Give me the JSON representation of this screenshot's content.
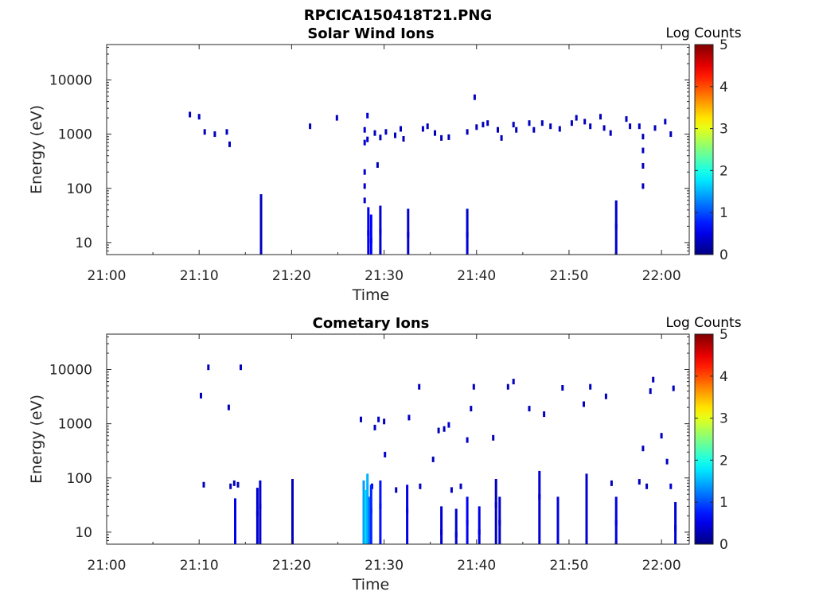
{
  "figure": {
    "title": "RPCICA150418T21.PNG"
  },
  "chart_data": [
    {
      "type": "heatmap",
      "title": "Solar Wind Ions",
      "xlabel": "Time",
      "ylabel": "Energy (eV)",
      "x_ticks": [
        "21:00",
        "21:10",
        "21:20",
        "21:30",
        "21:40",
        "21:50",
        "22:00"
      ],
      "y_ticks": [
        "10",
        "100",
        "1000",
        "10000"
      ],
      "y_scale": "log",
      "xlim": [
        "21:00",
        "22:03"
      ],
      "ylim": [
        6,
        45000
      ],
      "colorbar": {
        "label": "Log Counts",
        "ticks": [
          "0",
          "1",
          "2",
          "3",
          "4",
          "5"
        ],
        "range": [
          0,
          5
        ]
      },
      "grid": false,
      "points": [
        {
          "t": 9.0,
          "e": 2300,
          "v": 0.3
        },
        {
          "t": 10.0,
          "e": 2100,
          "v": 0.3
        },
        {
          "t": 10.6,
          "e": 1100,
          "v": 0.3
        },
        {
          "t": 11.7,
          "e": 1000,
          "v": 0.3
        },
        {
          "t": 13.0,
          "e": 1100,
          "v": 0.3
        },
        {
          "t": 13.3,
          "e": 650,
          "v": 0.3
        },
        {
          "t": 16.7,
          "e": 26,
          "v": 0.3
        },
        {
          "t": 22.0,
          "e": 1400,
          "v": 0.3
        },
        {
          "t": 24.9,
          "e": 2000,
          "v": 0.3
        },
        {
          "t": 27.9,
          "e": 1200,
          "v": 0.4
        },
        {
          "t": 27.9,
          "e": 700,
          "v": 0.4
        },
        {
          "t": 27.9,
          "e": 200,
          "v": 0.4
        },
        {
          "t": 27.9,
          "e": 110,
          "v": 0.4
        },
        {
          "t": 27.9,
          "e": 60,
          "v": 0.4
        },
        {
          "t": 28.2,
          "e": 2200,
          "v": 0.4
        },
        {
          "t": 28.2,
          "e": 800,
          "v": 0.4
        },
        {
          "t": 28.3,
          "e": 15,
          "v": 0.6
        },
        {
          "t": 28.6,
          "e": 11,
          "v": 0.6
        },
        {
          "t": 29.0,
          "e": 1050,
          "v": 0.3
        },
        {
          "t": 29.3,
          "e": 270,
          "v": 0.3
        },
        {
          "t": 29.6,
          "e": 870,
          "v": 0.3
        },
        {
          "t": 29.6,
          "e": 16,
          "v": 0.4
        },
        {
          "t": 30.2,
          "e": 1100,
          "v": 0.3
        },
        {
          "t": 31.2,
          "e": 950,
          "v": 0.3
        },
        {
          "t": 31.8,
          "e": 1250,
          "v": 0.3
        },
        {
          "t": 32.1,
          "e": 820,
          "v": 0.3
        },
        {
          "t": 32.6,
          "e": 14,
          "v": 0.4
        },
        {
          "t": 34.2,
          "e": 1250,
          "v": 0.3
        },
        {
          "t": 34.7,
          "e": 1400,
          "v": 0.3
        },
        {
          "t": 35.5,
          "e": 1050,
          "v": 0.3
        },
        {
          "t": 36.2,
          "e": 850,
          "v": 0.3
        },
        {
          "t": 37.0,
          "e": 880,
          "v": 0.3
        },
        {
          "t": 39.0,
          "e": 1100,
          "v": 0.3
        },
        {
          "t": 39.0,
          "e": 14,
          "v": 0.4
        },
        {
          "t": 39.8,
          "e": 4800,
          "v": 0.3
        },
        {
          "t": 40.0,
          "e": 1350,
          "v": 0.3
        },
        {
          "t": 40.7,
          "e": 1500,
          "v": 0.3
        },
        {
          "t": 41.2,
          "e": 1600,
          "v": 0.3
        },
        {
          "t": 42.3,
          "e": 1200,
          "v": 0.3
        },
        {
          "t": 42.7,
          "e": 850,
          "v": 0.3
        },
        {
          "t": 44.0,
          "e": 1500,
          "v": 0.3
        },
        {
          "t": 44.3,
          "e": 1200,
          "v": 0.3
        },
        {
          "t": 45.7,
          "e": 1600,
          "v": 0.3
        },
        {
          "t": 46.2,
          "e": 1200,
          "v": 0.3
        },
        {
          "t": 47.1,
          "e": 1600,
          "v": 0.3
        },
        {
          "t": 48.0,
          "e": 1400,
          "v": 0.3
        },
        {
          "t": 49.0,
          "e": 1250,
          "v": 0.3
        },
        {
          "t": 50.3,
          "e": 1600,
          "v": 0.3
        },
        {
          "t": 50.8,
          "e": 2000,
          "v": 0.3
        },
        {
          "t": 51.7,
          "e": 1700,
          "v": 0.3
        },
        {
          "t": 52.3,
          "e": 1400,
          "v": 0.3
        },
        {
          "t": 53.4,
          "e": 2100,
          "v": 0.3
        },
        {
          "t": 53.8,
          "e": 1300,
          "v": 0.3
        },
        {
          "t": 54.5,
          "e": 1050,
          "v": 0.3
        },
        {
          "t": 55.1,
          "e": 20,
          "v": 0.4
        },
        {
          "t": 56.2,
          "e": 1900,
          "v": 0.3
        },
        {
          "t": 56.6,
          "e": 1400,
          "v": 0.3
        },
        {
          "t": 57.6,
          "e": 1400,
          "v": 0.3
        },
        {
          "t": 58.0,
          "e": 900,
          "v": 0.3
        },
        {
          "t": 58.0,
          "e": 500,
          "v": 0.3
        },
        {
          "t": 58.0,
          "e": 260,
          "v": 0.3
        },
        {
          "t": 58.0,
          "e": 110,
          "v": 0.3
        },
        {
          "t": 59.3,
          "e": 1300,
          "v": 0.3
        },
        {
          "t": 60.4,
          "e": 1700,
          "v": 0.3
        },
        {
          "t": 61.0,
          "e": 1000,
          "v": 0.3
        }
      ]
    },
    {
      "type": "heatmap",
      "title": "Cometary Ions",
      "xlabel": "Time",
      "ylabel": "Energy (eV)",
      "x_ticks": [
        "21:00",
        "21:10",
        "21:20",
        "21:30",
        "21:40",
        "21:50",
        "22:00"
      ],
      "y_ticks": [
        "10",
        "100",
        "1000",
        "10000"
      ],
      "y_scale": "log",
      "xlim": [
        "21:00",
        "22:03"
      ],
      "ylim": [
        6,
        45000
      ],
      "colorbar": {
        "label": "Log Counts",
        "ticks": [
          "0",
          "1",
          "2",
          "3",
          "4",
          "5"
        ],
        "range": [
          0,
          5
        ]
      },
      "grid": false,
      "points": [
        {
          "t": 10.2,
          "e": 3300,
          "v": 0.3
        },
        {
          "t": 10.5,
          "e": 75,
          "v": 0.3
        },
        {
          "t": 11.0,
          "e": 11000,
          "v": 0.3
        },
        {
          "t": 13.2,
          "e": 2000,
          "v": 0.3
        },
        {
          "t": 13.4,
          "e": 70,
          "v": 0.3
        },
        {
          "t": 13.8,
          "e": 80,
          "v": 0.3
        },
        {
          "t": 13.9,
          "e": 14,
          "v": 0.5
        },
        {
          "t": 14.2,
          "e": 75,
          "v": 0.3
        },
        {
          "t": 14.5,
          "e": 11000,
          "v": 0.3
        },
        {
          "t": 16.3,
          "e": 22,
          "v": 0.4
        },
        {
          "t": 16.6,
          "e": 30,
          "v": 0.4
        },
        {
          "t": 20.1,
          "e": 32,
          "v": 0.3
        },
        {
          "t": 27.5,
          "e": 1200,
          "v": 0.3
        },
        {
          "t": 27.8,
          "e": 30,
          "v": 1.4
        },
        {
          "t": 28.0,
          "e": 20,
          "v": 1.7
        },
        {
          "t": 28.2,
          "e": 40,
          "v": 1.5
        },
        {
          "t": 28.4,
          "e": 15,
          "v": 1.2
        },
        {
          "t": 28.6,
          "e": 25,
          "v": 0.8
        },
        {
          "t": 28.7,
          "e": 70,
          "v": 0.6
        },
        {
          "t": 29.0,
          "e": 850,
          "v": 0.3
        },
        {
          "t": 29.4,
          "e": 1200,
          "v": 0.4
        },
        {
          "t": 29.6,
          "e": 30,
          "v": 0.7
        },
        {
          "t": 30.0,
          "e": 1100,
          "v": 0.3
        },
        {
          "t": 30.1,
          "e": 270,
          "v": 0.4
        },
        {
          "t": 31.3,
          "e": 60,
          "v": 0.3
        },
        {
          "t": 32.5,
          "e": 25,
          "v": 0.5
        },
        {
          "t": 32.7,
          "e": 1300,
          "v": 0.3
        },
        {
          "t": 33.8,
          "e": 4800,
          "v": 0.3
        },
        {
          "t": 33.9,
          "e": 70,
          "v": 0.3
        },
        {
          "t": 35.3,
          "e": 220,
          "v": 0.3
        },
        {
          "t": 35.9,
          "e": 750,
          "v": 0.3
        },
        {
          "t": 36.2,
          "e": 10,
          "v": 0.4
        },
        {
          "t": 36.5,
          "e": 800,
          "v": 0.3
        },
        {
          "t": 37.0,
          "e": 950,
          "v": 0.4
        },
        {
          "t": 37.3,
          "e": 60,
          "v": 0.3
        },
        {
          "t": 37.8,
          "e": 9,
          "v": 0.4
        },
        {
          "t": 38.3,
          "e": 70,
          "v": 0.3
        },
        {
          "t": 39.0,
          "e": 500,
          "v": 0.4
        },
        {
          "t": 39.0,
          "e": 15,
          "v": 0.6
        },
        {
          "t": 39.4,
          "e": 1900,
          "v": 0.3
        },
        {
          "t": 39.7,
          "e": 4800,
          "v": 0.3
        },
        {
          "t": 40.3,
          "e": 10,
          "v": 0.5
        },
        {
          "t": 41.8,
          "e": 550,
          "v": 0.3
        },
        {
          "t": 42.1,
          "e": 32,
          "v": 0.3
        },
        {
          "t": 42.5,
          "e": 15,
          "v": 0.4
        },
        {
          "t": 43.4,
          "e": 4800,
          "v": 0.3
        },
        {
          "t": 44.0,
          "e": 6000,
          "v": 0.3
        },
        {
          "t": 45.7,
          "e": 1900,
          "v": 0.3
        },
        {
          "t": 46.8,
          "e": 45,
          "v": 0.4
        },
        {
          "t": 47.3,
          "e": 1500,
          "v": 0.3
        },
        {
          "t": 48.8,
          "e": 15,
          "v": 0.5
        },
        {
          "t": 49.3,
          "e": 4600,
          "v": 0.3
        },
        {
          "t": 51.6,
          "e": 2300,
          "v": 0.3
        },
        {
          "t": 51.9,
          "e": 40,
          "v": 0.4
        },
        {
          "t": 52.3,
          "e": 4800,
          "v": 0.3
        },
        {
          "t": 54.0,
          "e": 3200,
          "v": 0.3
        },
        {
          "t": 54.6,
          "e": 80,
          "v": 0.3
        },
        {
          "t": 55.1,
          "e": 15,
          "v": 0.5
        },
        {
          "t": 57.6,
          "e": 85,
          "v": 0.3
        },
        {
          "t": 58.0,
          "e": 350,
          "v": 0.3
        },
        {
          "t": 58.4,
          "e": 70,
          "v": 0.3
        },
        {
          "t": 58.8,
          "e": 4000,
          "v": 0.3
        },
        {
          "t": 59.1,
          "e": 6500,
          "v": 0.3
        },
        {
          "t": 60.0,
          "e": 600,
          "v": 0.3
        },
        {
          "t": 60.6,
          "e": 200,
          "v": 0.3
        },
        {
          "t": 61.0,
          "e": 70,
          "v": 0.4
        },
        {
          "t": 61.3,
          "e": 4500,
          "v": 0.3
        },
        {
          "t": 61.5,
          "e": 12,
          "v": 0.4
        }
      ]
    }
  ]
}
